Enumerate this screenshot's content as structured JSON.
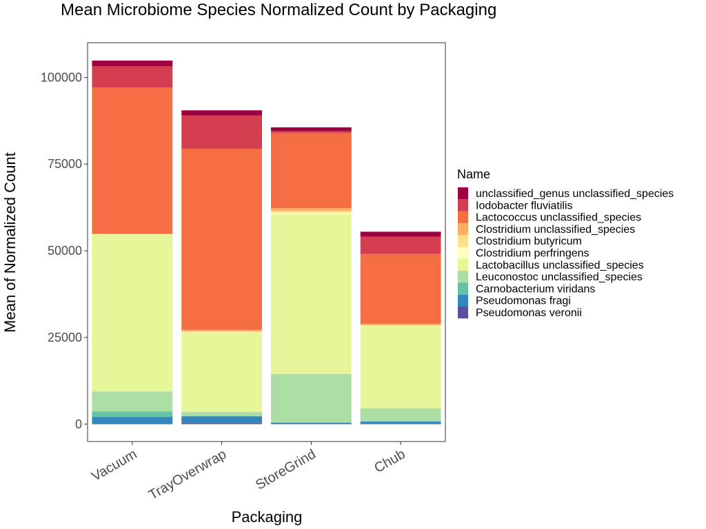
{
  "chart_data": {
    "type": "bar",
    "stacked": true,
    "title": "Mean Microbiome Species Normalized Count by Packaging",
    "xlabel": "Packaging",
    "ylabel": "Mean of Normalized Count",
    "ylim": [
      -5000,
      110000
    ],
    "yticks": [
      0,
      25000,
      50000,
      75000,
      100000
    ],
    "ytick_labels": [
      "0",
      "25000",
      "50000",
      "75000",
      "100000"
    ],
    "categories": [
      "Vacuum",
      "TrayOverwrap",
      "StoreGrind",
      "Chub"
    ],
    "grid": false,
    "legend_title": "Name",
    "legend_position": "right",
    "series": [
      {
        "name": "Pseudomonas veronii",
        "color": "#5E4FA2",
        "values": [
          150,
          300,
          200,
          200
        ]
      },
      {
        "name": "Pseudomonas fragi",
        "color": "#3288BD",
        "values": [
          1900,
          2000,
          200,
          600
        ]
      },
      {
        "name": "Carnobacterium viridans",
        "color": "#66C2A5",
        "values": [
          1600,
          0,
          200,
          0
        ]
      },
      {
        "name": "Leuconostoc unclassified_species",
        "color": "#ABDDA4",
        "values": [
          5800,
          1200,
          13900,
          3800
        ]
      },
      {
        "name": "Lactobacillus unclassified_species",
        "color": "#E6F598",
        "values": [
          45300,
          22800,
          46000,
          23500
        ]
      },
      {
        "name": "Clostridium perfringens",
        "color": "#FFFFBF",
        "values": [
          100,
          100,
          400,
          100
        ]
      },
      {
        "name": "Clostridium butyricum",
        "color": "#FEE08B",
        "values": [
          0,
          400,
          600,
          400
        ]
      },
      {
        "name": "Clostridium unclassified_species",
        "color": "#FDAE61",
        "values": [
          0,
          400,
          800,
          300
        ]
      },
      {
        "name": "Lactococcus unclassified_species",
        "color": "#F46D43",
        "values": [
          42200,
          52200,
          21700,
          20200
        ]
      },
      {
        "name": "Iodobacter fluviatilis",
        "color": "#D53E4F",
        "values": [
          6200,
          9600,
          500,
          5000
        ]
      },
      {
        "name": "unclassified_genus unclassified_species",
        "color": "#9E0142",
        "values": [
          1600,
          1500,
          1100,
          1400
        ]
      }
    ]
  }
}
